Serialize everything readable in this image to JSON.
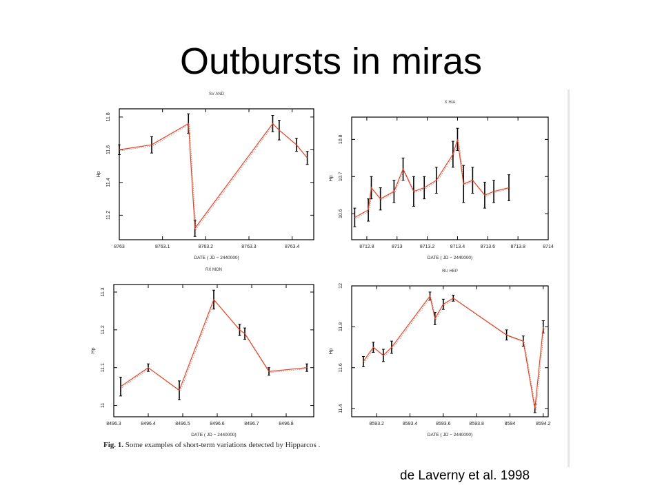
{
  "slide": {
    "title": "Outbursts in miras",
    "citation": "de Laverny et al. 1998",
    "caption_label": "Fig. 1.",
    "caption_text": "Some examples of short-term variations detected by Hipparcos ."
  },
  "colors": {
    "model_line": "#e8401f",
    "data": "#000000",
    "frame": "#000000"
  },
  "chart_data": [
    {
      "type": "line",
      "title": "SV AND",
      "xlabel": "DATE ( JD − 2440000)",
      "ylabel": "Hp",
      "xlim": [
        8763.0,
        8763.45
      ],
      "ylim": [
        11.85,
        11.05
      ],
      "x_ticks": [
        "8763",
        "8763.1",
        "8763.2",
        "8763.3",
        "8763.4"
      ],
      "x_tick_values": [
        8763.0,
        8763.1,
        8763.2,
        8763.3,
        8763.4
      ],
      "y_ticks": [
        "11.2",
        "11.4",
        "11.6",
        "11.8"
      ],
      "y_tick_values": [
        11.2,
        11.4,
        11.6,
        11.8
      ],
      "series": [
        {
          "x": [
            8763.0,
            8763.075,
            8763.16,
            8763.175,
            8763.355,
            8763.37,
            8763.41,
            8763.435
          ],
          "y": [
            11.6,
            11.63,
            11.76,
            11.12,
            11.76,
            11.72,
            11.63,
            11.55
          ],
          "err": [
            0.03,
            0.05,
            0.06,
            0.05,
            0.05,
            0.06,
            0.04,
            0.04
          ]
        }
      ]
    },
    {
      "type": "line",
      "title": "X HIA",
      "xlabel": "DATE ( JD − 2440000)",
      "ylabel": "Hp",
      "xlim": [
        8712.7,
        8714.0
      ],
      "ylim": [
        10.86,
        10.53
      ],
      "x_ticks": [
        "8712.8",
        "8713",
        "8713.2",
        "8713.4",
        "8713.6",
        "8713.8",
        "8714"
      ],
      "x_tick_values": [
        8712.8,
        8713.0,
        8713.2,
        8713.4,
        8713.6,
        8713.8,
        8714.0
      ],
      "y_ticks": [
        "10.6",
        "10.7",
        "10.8"
      ],
      "y_tick_values": [
        10.6,
        10.7,
        10.8
      ],
      "series": [
        {
          "x": [
            8712.72,
            8712.81,
            8712.83,
            8712.89,
            8712.98,
            8713.04,
            8713.11,
            8713.18,
            8713.26,
            8713.37,
            8713.4,
            8713.44,
            8713.5,
            8713.58,
            8713.64,
            8713.74
          ],
          "y": [
            10.59,
            10.61,
            10.67,
            10.64,
            10.66,
            10.72,
            10.66,
            10.67,
            10.69,
            10.76,
            10.8,
            10.68,
            10.69,
            10.65,
            10.66,
            10.67
          ],
          "err": [
            0.025,
            0.03,
            0.03,
            0.03,
            0.03,
            0.03,
            0.04,
            0.03,
            0.035,
            0.035,
            0.03,
            0.05,
            0.035,
            0.035,
            0.03,
            0.035
          ]
        }
      ]
    },
    {
      "type": "line",
      "title": "RX MON",
      "xlabel": "DATE ( JD − 2440000)",
      "ylabel": "Hp",
      "xlim": [
        8496.3,
        8496.88
      ],
      "ylim": [
        11.32,
        10.97
      ],
      "x_ticks": [
        "8496.3",
        "8496.4",
        "8496.5",
        "8496.6",
        "8496.7",
        "8496.8"
      ],
      "x_tick_values": [
        8496.3,
        8496.4,
        8496.5,
        8496.6,
        8496.7,
        8496.8
      ],
      "y_ticks": [
        "11",
        "11.1",
        "11.2",
        "11.3"
      ],
      "y_tick_values": [
        11.0,
        11.1,
        11.2,
        11.3
      ],
      "series": [
        {
          "x": [
            8496.32,
            8496.4,
            8496.49,
            8496.59,
            8496.665,
            8496.68,
            8496.75,
            8496.86
          ],
          "y": [
            11.05,
            11.1,
            11.04,
            11.28,
            11.2,
            11.19,
            11.09,
            11.1
          ],
          "err": [
            0.025,
            0.01,
            0.025,
            0.025,
            0.015,
            0.015,
            0.01,
            0.01
          ]
        }
      ]
    },
    {
      "type": "line",
      "title": "RU HEP",
      "xlabel": "DATE ( JD − 2440000)",
      "ylabel": "Hp",
      "xlim": [
        8593.05,
        8594.23
      ],
      "ylim": [
        12.0,
        11.36
      ],
      "x_ticks": [
        "8593.2",
        "8593.4",
        "8593.6",
        "8593.8",
        "8594",
        "8594.2"
      ],
      "x_tick_values": [
        8593.2,
        8593.4,
        8593.6,
        8593.8,
        8594.0,
        8594.2
      ],
      "y_ticks": [
        "11.4",
        "11.6",
        "11.8",
        "12"
      ],
      "y_tick_values": [
        11.4,
        11.6,
        11.8,
        12.0
      ],
      "series": [
        {
          "x": [
            8593.12,
            8593.18,
            8593.24,
            8593.29,
            8593.52,
            8593.55,
            8593.6,
            8593.66,
            8593.98,
            8594.08,
            8594.15,
            8594.2
          ],
          "y": [
            11.63,
            11.7,
            11.66,
            11.7,
            11.95,
            11.84,
            11.91,
            11.94,
            11.76,
            11.73,
            11.4,
            11.8
          ],
          "err": [
            0.025,
            0.025,
            0.03,
            0.03,
            0.02,
            0.03,
            0.025,
            0.015,
            0.025,
            0.025,
            0.02,
            0.03
          ]
        }
      ]
    }
  ]
}
